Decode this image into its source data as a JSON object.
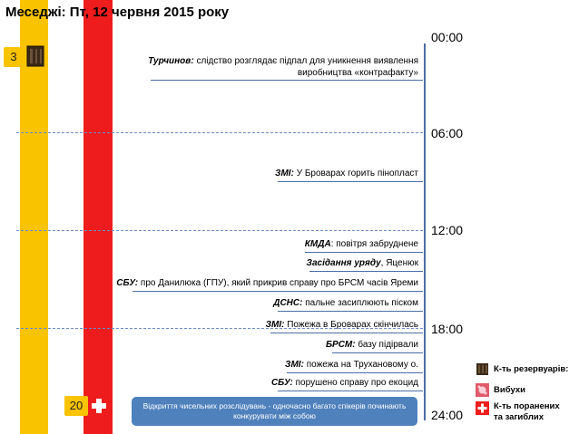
{
  "title": "Меседжі: Пт, 12 червня 2015 року",
  "badges": {
    "left_count": "3",
    "bottom_count": "20"
  },
  "times": [
    "00:00",
    "06:00",
    "12:00",
    "18:00",
    "24:00"
  ],
  "events": [
    {
      "bold": "Турчинов:",
      "text": " слідство розглядає підпал для уникнення виявлення",
      "line2": "виробництва «контрафакту»"
    },
    {
      "bold": "ЗМІ:",
      "text": " У Броварах горить пінопласт"
    },
    {
      "bold": "КМДА",
      "text": ": повітря забруднене"
    },
    {
      "bold": "Засідання уряду",
      "text": ", Яценюк"
    },
    {
      "bold": "СБУ:",
      "text": " про Данилюка (ГПУ), який прикрив справу про БРСМ часів Яреми"
    },
    {
      "bold": "ДСНС:",
      "text": " пальне засиплюють піском"
    },
    {
      "bold": "ЗМІ:",
      "text": " Пожежа в Броварах скінчилась"
    },
    {
      "bold": "БРСМ:",
      "text": " базу підірвали"
    },
    {
      "bold": "ЗМІ:",
      "text": " пожежа на Трухановому о."
    },
    {
      "bold": "СБУ:",
      "text": " порушено справу про екоцид"
    }
  ],
  "callout": "Відкриття чисельних розслідувань - одночасно багато спікерів починають конкурувати між собою",
  "legend": [
    {
      "icon": "tank-icon",
      "label": "К-ть резервуарів:"
    },
    {
      "icon": "explosion-icon",
      "label": "Вибухи"
    },
    {
      "icon": "medical-cross-icon",
      "label": "К-ть поранених",
      "label2": "та загиблих"
    }
  ],
  "colors": {
    "yellow": "#f9c300",
    "red": "#ee1c1c",
    "axis": "#4a6fa5",
    "callout": "#4f81bd"
  }
}
